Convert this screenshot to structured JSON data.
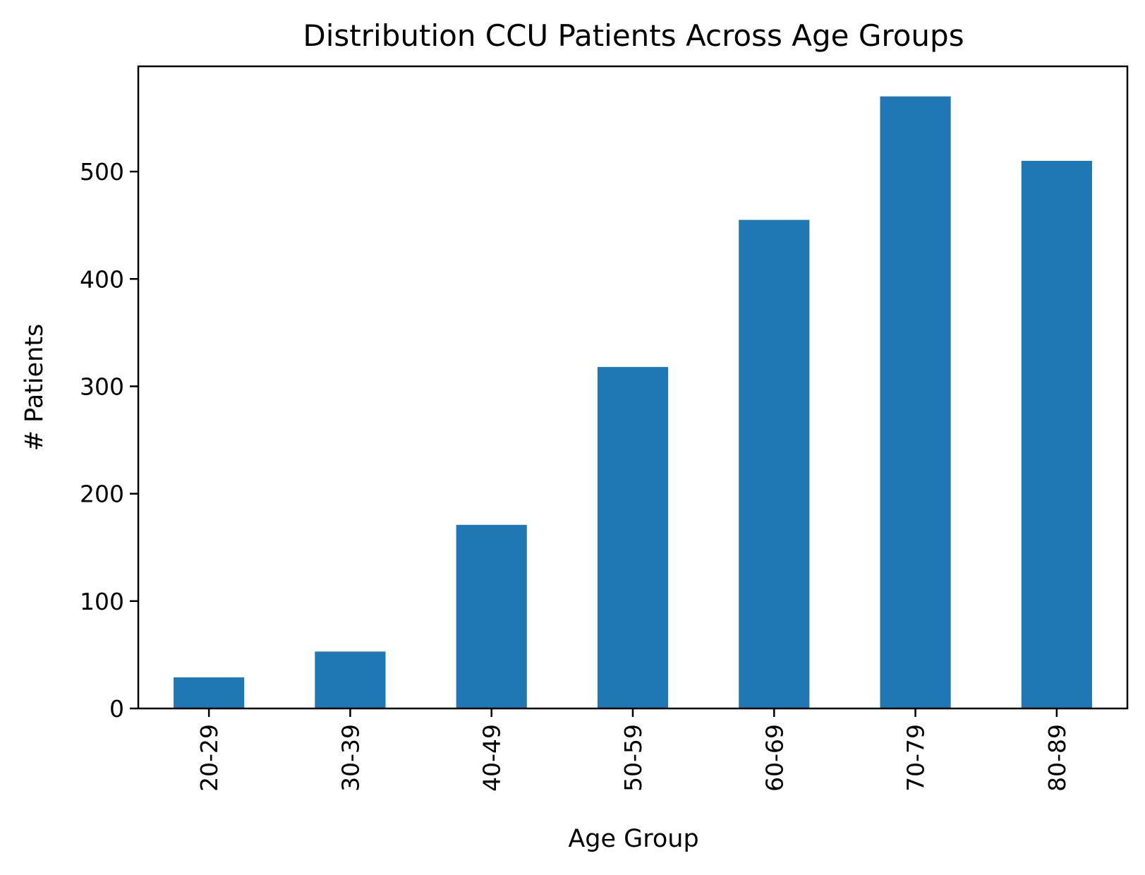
{
  "chart_data": {
    "type": "bar",
    "title": "Distribution CCU Patients Across Age Groups",
    "xlabel": "Age Group",
    "ylabel": "# Patients",
    "categories": [
      "20-29",
      "30-39",
      "40-49",
      "50-59",
      "60-69",
      "70-79",
      "80-89"
    ],
    "values": [
      29,
      53,
      171,
      318,
      455,
      570,
      510
    ],
    "ylim": [
      0,
      598
    ],
    "yticks": [
      0,
      100,
      200,
      300,
      400,
      500
    ],
    "bar_color": "#1f77b4",
    "grid": false,
    "legend": "none"
  }
}
